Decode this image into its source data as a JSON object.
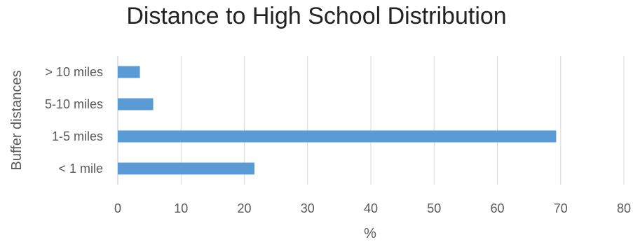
{
  "chart_data": {
    "type": "bar",
    "orientation": "horizontal",
    "title": "Distance to High School Distribution",
    "xlabel": "%",
    "ylabel": "Buffer distances",
    "categories": [
      "> 10 miles",
      "5-10 miles",
      "1-5 miles",
      "< 1 mile"
    ],
    "values": [
      3.5,
      5.6,
      69.3,
      21.6
    ],
    "xlim": [
      0,
      80
    ],
    "xticks": [
      "0",
      "10",
      "20",
      "30",
      "40",
      "50",
      "60",
      "70",
      "80"
    ],
    "grid": true,
    "legend": "none",
    "bar_color": "#5b9bd5"
  }
}
